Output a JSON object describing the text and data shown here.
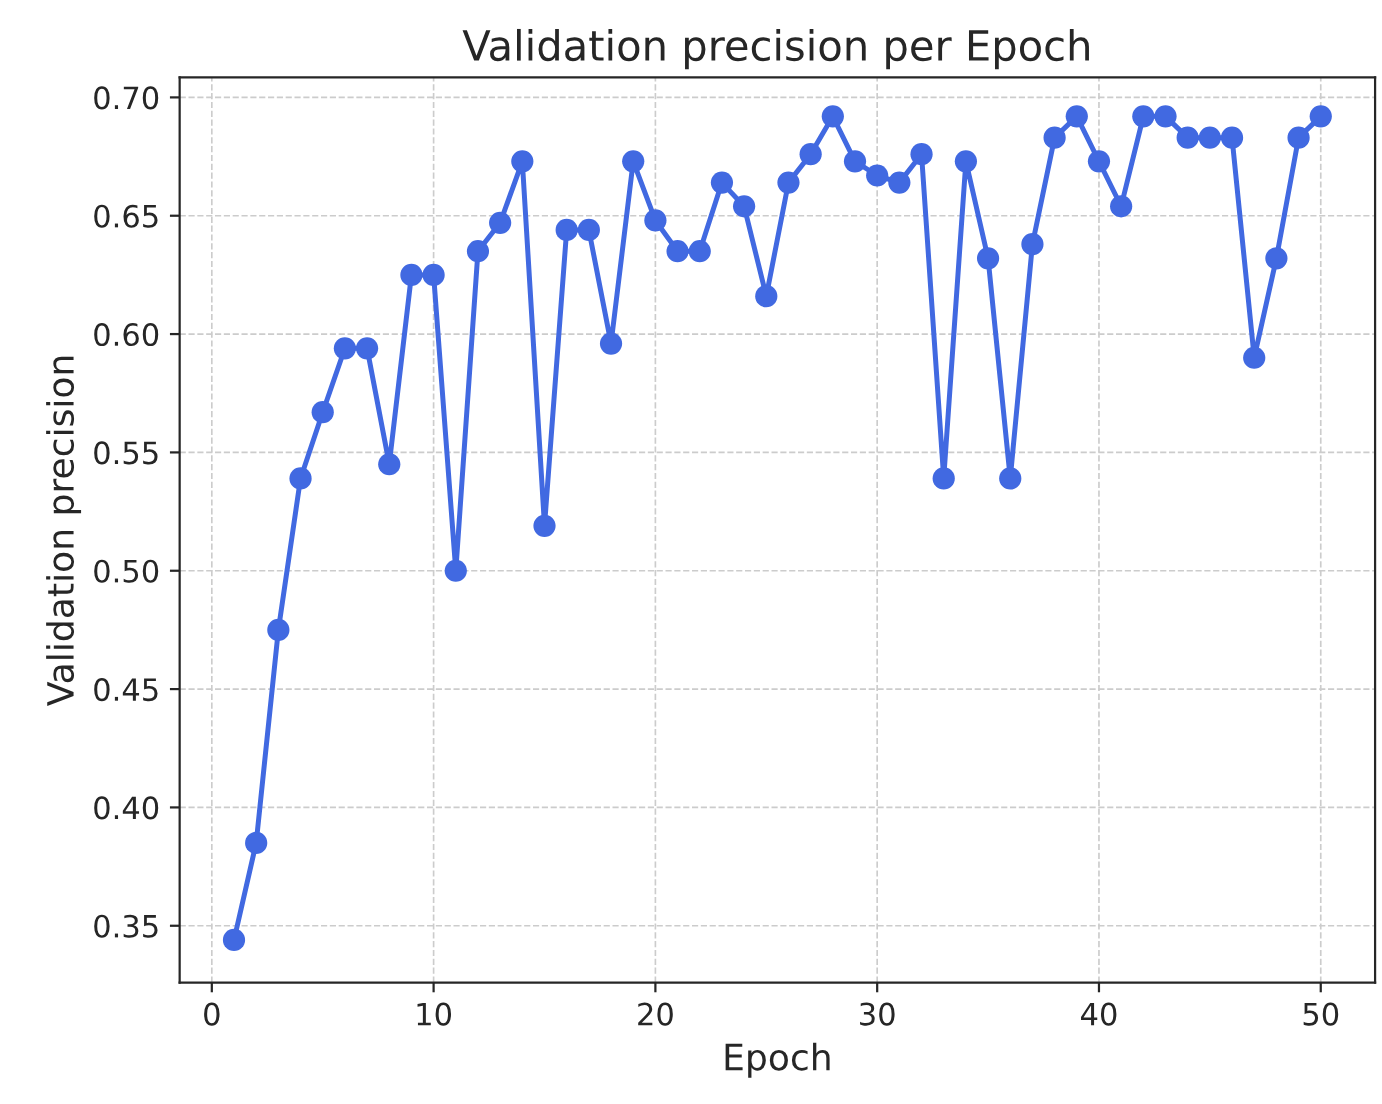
{
  "chart_data": {
    "type": "line",
    "title": "Validation precision per Epoch",
    "xlabel": "Epoch",
    "ylabel": "Validation precision",
    "x": [
      1,
      2,
      3,
      4,
      5,
      6,
      7,
      8,
      9,
      10,
      11,
      12,
      13,
      14,
      15,
      16,
      17,
      18,
      19,
      20,
      21,
      22,
      23,
      24,
      25,
      26,
      27,
      28,
      29,
      30,
      31,
      32,
      33,
      34,
      35,
      36,
      37,
      38,
      39,
      40,
      41,
      42,
      43,
      44,
      45,
      46,
      47,
      48,
      49,
      50
    ],
    "series": [
      {
        "color": "#4169e1",
        "values": [
          0.344,
          0.385,
          0.475,
          0.539,
          0.567,
          0.594,
          0.594,
          0.545,
          0.625,
          0.625,
          0.5,
          0.635,
          0.647,
          0.673,
          0.519,
          0.644,
          0.644,
          0.596,
          0.673,
          0.648,
          0.635,
          0.635,
          0.664,
          0.654,
          0.616,
          0.664,
          0.676,
          0.692,
          0.673,
          0.667,
          0.664,
          0.676,
          0.539,
          0.673,
          0.632,
          0.539,
          0.638,
          0.683,
          0.692,
          0.673,
          0.654,
          0.692,
          0.692,
          0.683,
          0.683,
          0.683,
          0.59,
          0.632,
          0.683,
          0.692
        ]
      }
    ],
    "xlim": [
      -1.45,
      52.45
    ],
    "ylim": [
      0.326,
      0.7085
    ],
    "xticks": [
      0,
      10,
      20,
      30,
      40,
      50
    ],
    "yticks": [
      {
        "value": 0.35,
        "label": "0.35"
      },
      {
        "value": 0.4,
        "label": "0.40"
      },
      {
        "value": 0.45,
        "label": "0.45"
      },
      {
        "value": 0.5,
        "label": "0.50"
      },
      {
        "value": 0.55,
        "label": "0.55"
      },
      {
        "value": 0.6,
        "label": "0.60"
      },
      {
        "value": 0.65,
        "label": "0.65"
      },
      {
        "value": 0.7,
        "label": "0.70"
      }
    ],
    "grid": true,
    "marker": "circle",
    "line_style": "solid"
  }
}
